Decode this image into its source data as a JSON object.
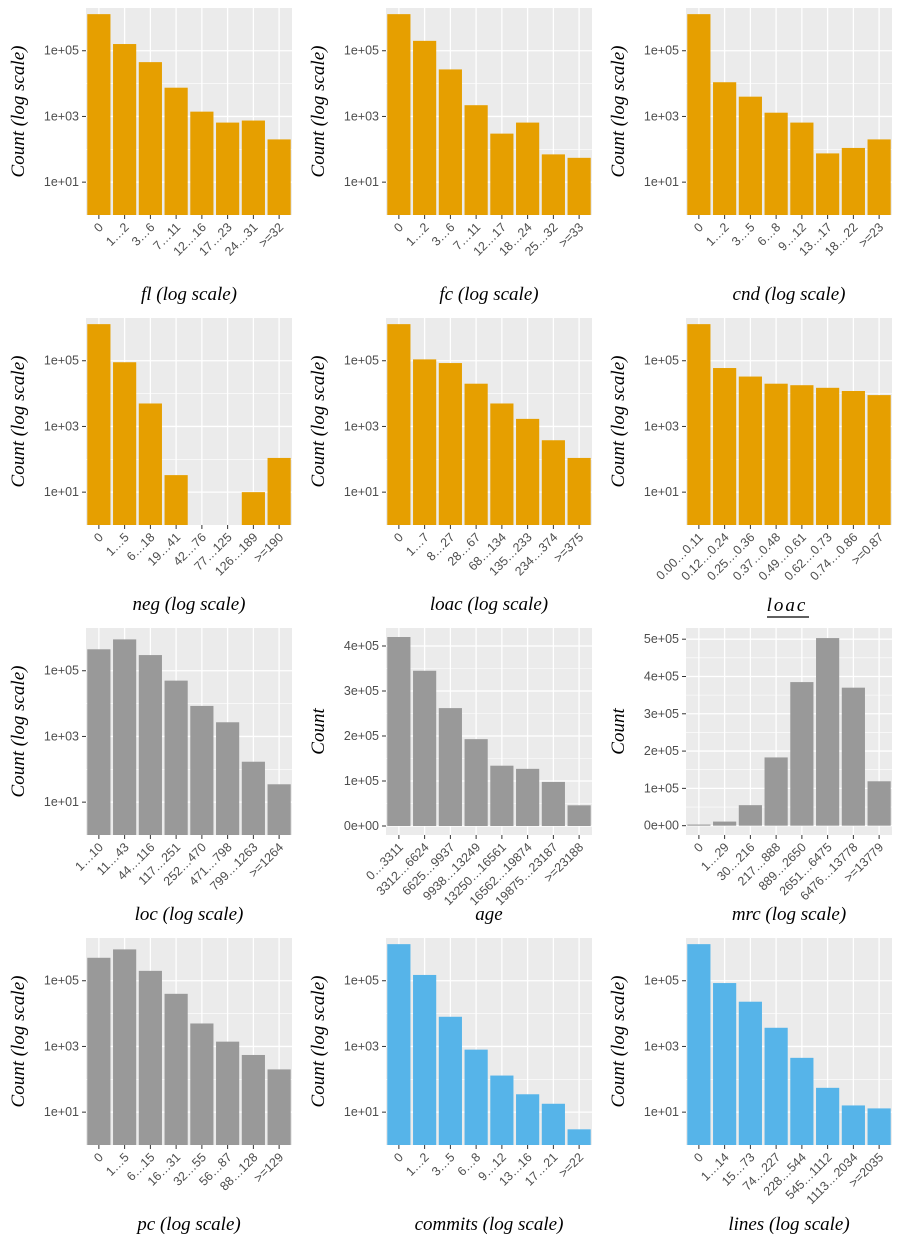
{
  "figure": {
    "colors": {
      "orange": "#E69F00",
      "gray": "#999999",
      "blue": "#56B4E9",
      "panel_bg": "#EBEBEB",
      "grid": "#FFFFFF"
    }
  },
  "chart_data": [
    {
      "id": "fl",
      "type": "bar",
      "scale": "log",
      "color": "orange",
      "categories": [
        "0",
        "1…2",
        "3…6",
        "7…11",
        "12…16",
        "17…23",
        "24…31",
        ">=32"
      ],
      "values": [
        1300000,
        160000,
        45000,
        7500,
        1400,
        650,
        750,
        200
      ],
      "yticks": [
        10,
        1000,
        100000
      ],
      "ytick_labels": [
        "1e+01",
        "1e+03",
        "1e+05"
      ],
      "ylim": [
        1,
        2000000
      ],
      "ylabel": "Count (log scale)",
      "xlabel": "fl (log scale)"
    },
    {
      "id": "fc",
      "type": "bar",
      "scale": "log",
      "color": "orange",
      "categories": [
        "0",
        "1…2",
        "3…6",
        "7…11",
        "12…17",
        "18…24",
        "25…32",
        ">=33"
      ],
      "values": [
        1300000,
        200000,
        27000,
        2200,
        300,
        650,
        70,
        55
      ],
      "yticks": [
        10,
        1000,
        100000
      ],
      "ytick_labels": [
        "1e+01",
        "1e+03",
        "1e+05"
      ],
      "ylim": [
        1,
        2000000
      ],
      "ylabel": "Count (log scale)",
      "xlabel": "fc (log scale)"
    },
    {
      "id": "cnd",
      "type": "bar",
      "scale": "log",
      "color": "orange",
      "categories": [
        "0",
        "1…2",
        "3…5",
        "6…8",
        "9…12",
        "13…17",
        "18…22",
        ">=23"
      ],
      "values": [
        1300000,
        11000,
        4000,
        1300,
        650,
        75,
        110,
        200
      ],
      "yticks": [
        10,
        1000,
        100000
      ],
      "ytick_labels": [
        "1e+01",
        "1e+03",
        "1e+05"
      ],
      "ylim": [
        1,
        2000000
      ],
      "ylabel": "Count (log scale)",
      "xlabel": "cnd (log scale)"
    },
    {
      "id": "neg",
      "type": "bar",
      "scale": "log",
      "color": "orange",
      "categories": [
        "0",
        "1…5",
        "6…18",
        "19…41",
        "42…76",
        "77…125",
        "126…189",
        ">=190"
      ],
      "values": [
        1300000,
        90000,
        5000,
        33,
        null,
        null,
        10,
        110
      ],
      "yticks": [
        10,
        1000,
        100000
      ],
      "ytick_labels": [
        "1e+01",
        "1e+03",
        "1e+05"
      ],
      "ylim": [
        1,
        2000000
      ],
      "ylabel": "Count (log scale)",
      "xlabel": "neg (log scale)"
    },
    {
      "id": "loac",
      "type": "bar",
      "scale": "log",
      "color": "orange",
      "categories": [
        "0",
        "1…7",
        "8…27",
        "28…67",
        "68…134",
        "135…233",
        "234…374",
        ">=375"
      ],
      "values": [
        1300000,
        110000,
        85000,
        20000,
        5000,
        1700,
        380,
        110
      ],
      "yticks": [
        10,
        1000,
        100000
      ],
      "ytick_labels": [
        "1e+01",
        "1e+03",
        "1e+05"
      ],
      "ylim": [
        1,
        2000000
      ],
      "ylabel": "Count (log scale)",
      "xlabel": "loac (log scale)"
    },
    {
      "id": "loac_ratio",
      "type": "bar",
      "scale": "log",
      "color": "orange",
      "categories": [
        "0.00…0.11",
        "0.12…0.24",
        "0.25…0.36",
        "0.37…0.48",
        "0.49…0.61",
        "0.62…0.73",
        "0.74…0.86",
        ">=0.87"
      ],
      "values": [
        1300000,
        60000,
        33000,
        20000,
        18000,
        15000,
        12000,
        9000
      ],
      "yticks": [
        10,
        1000,
        100000
      ],
      "ytick_labels": [
        "1e+01",
        "1e+03",
        "1e+05"
      ],
      "ylim": [
        1,
        2000000
      ],
      "ylabel": "Count (log scale)",
      "xlabel_num": "loac",
      "xlabel_den": "loc"
    },
    {
      "id": "loc",
      "type": "bar",
      "scale": "log",
      "color": "gray",
      "categories": [
        "1…10",
        "11…43",
        "44…116",
        "117…251",
        "252…470",
        "471…798",
        "799…1263",
        ">=1264"
      ],
      "values": [
        450000,
        900000,
        300000,
        50000,
        8500,
        2700,
        170,
        35
      ],
      "yticks": [
        10,
        1000,
        100000
      ],
      "ytick_labels": [
        "1e+01",
        "1e+03",
        "1e+05"
      ],
      "ylim": [
        1,
        2000000
      ],
      "ylabel": "Count (log scale)",
      "xlabel": "loc (log scale)"
    },
    {
      "id": "age",
      "type": "bar",
      "scale": "linear",
      "color": "gray",
      "categories": [
        "0…3311",
        "3312…6624",
        "6625…9937",
        "9938…13249",
        "13250…16561",
        "16562…19874",
        "19875…23187",
        ">=23188"
      ],
      "values": [
        420000,
        345000,
        262000,
        193000,
        134000,
        127000,
        98000,
        46000
      ],
      "yticks": [
        0,
        100000,
        200000,
        300000,
        400000
      ],
      "ytick_labels": [
        "0e+00",
        "1e+05",
        "2e+05",
        "3e+05",
        "4e+05"
      ],
      "ylim": [
        -20000,
        440000
      ],
      "ylabel": "Count",
      "xlabel": "age"
    },
    {
      "id": "mrc",
      "type": "bar",
      "scale": "linear",
      "color": "gray",
      "categories": [
        "0",
        "1…29",
        "30…216",
        "217…888",
        "889…2650",
        "2651…6475",
        "6476…13778",
        ">=13779"
      ],
      "values": [
        3000,
        11000,
        55000,
        183000,
        385000,
        503000,
        370000,
        119000
      ],
      "yticks": [
        0,
        100000,
        200000,
        300000,
        400000,
        500000
      ],
      "ytick_labels": [
        "0e+00",
        "1e+05",
        "2e+05",
        "3e+05",
        "4e+05",
        "5e+05"
      ],
      "ylim": [
        -25000,
        530000
      ],
      "ylabel": "Count",
      "xlabel": "mrc (log scale)"
    },
    {
      "id": "pc",
      "type": "bar",
      "scale": "log",
      "color": "gray",
      "categories": [
        "0",
        "1…5",
        "6…15",
        "16…31",
        "32…55",
        "56…87",
        "88…128",
        ">=129"
      ],
      "values": [
        500000,
        900000,
        200000,
        40000,
        5000,
        1400,
        550,
        200
      ],
      "yticks": [
        10,
        1000,
        100000
      ],
      "ytick_labels": [
        "1e+01",
        "1e+03",
        "1e+05"
      ],
      "ylim": [
        1,
        2000000
      ],
      "ylabel": "Count (log scale)",
      "xlabel": "pc (log scale)"
    },
    {
      "id": "commits",
      "type": "bar",
      "scale": "log",
      "color": "blue",
      "categories": [
        "0",
        "1…2",
        "3…5",
        "6…8",
        "9…12",
        "13…16",
        "17…21",
        ">=22"
      ],
      "values": [
        1300000,
        150000,
        8000,
        800,
        130,
        35,
        18,
        3
      ],
      "yticks": [
        10,
        1000,
        100000
      ],
      "ytick_labels": [
        "1e+01",
        "1e+03",
        "1e+05"
      ],
      "ylim": [
        1,
        2000000
      ],
      "ylabel": "Count (log scale)",
      "xlabel": "commits (log scale)"
    },
    {
      "id": "lines",
      "type": "bar",
      "scale": "log",
      "color": "blue",
      "categories": [
        "0",
        "1…14",
        "15…73",
        "74…227",
        "228…544",
        "545…1112",
        "1113…2034",
        ">=2035"
      ],
      "values": [
        1300000,
        85000,
        23000,
        3700,
        450,
        55,
        16,
        13
      ],
      "yticks": [
        10,
        1000,
        100000
      ],
      "ytick_labels": [
        "1e+01",
        "1e+03",
        "1e+05"
      ],
      "ylim": [
        1,
        2000000
      ],
      "ylabel": "Count (log scale)",
      "xlabel": "lines (log scale)"
    }
  ]
}
